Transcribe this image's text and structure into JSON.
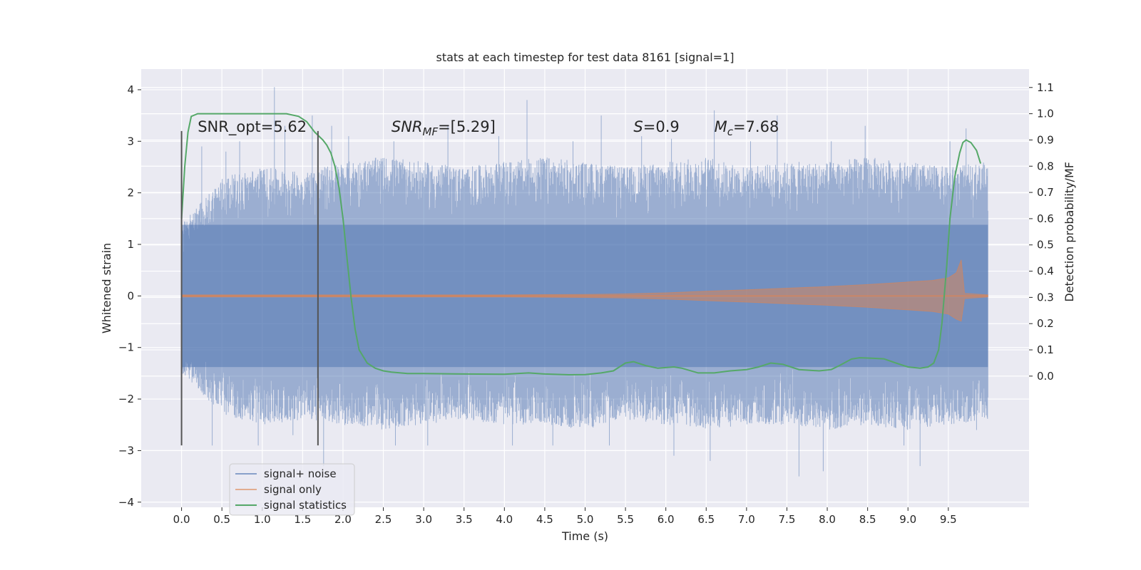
{
  "chart_data": {
    "type": "line",
    "title": "stats at each timestep for test data 8161 [signal=1]",
    "xlabel": "Time (s)",
    "ylabel": "Whitened strain",
    "ylabel_right": "Detection probability/MF",
    "xlim": [
      -0.5,
      10.5
    ],
    "ylim": [
      -4.1,
      4.4
    ],
    "ylim_right": [
      -0.5,
      1.17
    ],
    "x_ticks": [
      0.0,
      0.5,
      1.0,
      1.5,
      2.0,
      2.5,
      3.0,
      3.5,
      4.0,
      4.5,
      5.0,
      5.5,
      6.0,
      6.5,
      7.0,
      7.5,
      8.0,
      8.5,
      9.0,
      9.5
    ],
    "x_tick_labels": [
      "0.0",
      "0.5",
      "1.0",
      "1.5",
      "2.0",
      "2.5",
      "3.0",
      "3.5",
      "4.0",
      "4.5",
      "5.0",
      "5.5",
      "6.0",
      "6.5",
      "7.0",
      "7.5",
      "8.0",
      "8.5",
      "9.0",
      "9.5"
    ],
    "y_ticks": [
      4,
      3,
      2,
      1,
      0,
      -1,
      -2,
      -3,
      -4
    ],
    "y_tick_labels": [
      "4",
      "3",
      "2",
      "1",
      "0",
      "−1",
      "−2",
      "−3",
      "−4"
    ],
    "y_right_ticks": [
      1.1,
      1.0,
      0.9,
      0.8,
      0.7,
      0.6,
      0.5,
      0.4,
      0.3,
      0.2,
      0.1,
      0.0
    ],
    "y_right_tick_labels": [
      "1.1",
      "1.0",
      "0.9",
      "0.8",
      "0.7",
      "0.6",
      "0.5",
      "0.4",
      "0.3",
      "0.2",
      "0.1",
      "0.0"
    ],
    "grid": true,
    "background": "#eaeaf2",
    "legend_position": "lower-left",
    "annotations": [
      {
        "x": 0.2,
        "y": 3.2,
        "text": "SNR_opt=5.62",
        "italic": false
      },
      {
        "x": 2.6,
        "y": 3.2,
        "text": "SNR_MF=[5.29]",
        "italic": true
      },
      {
        "x": 5.6,
        "y": 3.2,
        "text": "S=0.9",
        "italic": true
      },
      {
        "x": 6.6,
        "y": 3.2,
        "text": "M_c=7.68",
        "italic": true
      }
    ],
    "vlines": [
      {
        "x": 0.0,
        "ymin": -2.9,
        "ymax": 3.2
      },
      {
        "x": 1.69,
        "ymin": -2.9,
        "ymax": 3.2
      }
    ],
    "series": [
      {
        "name": "signal+ noise",
        "color": "#4c72b0",
        "alpha": 0.5,
        "x_range": [
          0.0,
          9.99
        ],
        "envelope_upper": [
          1.4,
          2.3,
          2.5,
          2.4,
          2.6,
          2.7,
          2.6,
          2.5,
          2.6,
          2.7,
          2.6,
          2.5,
          2.6,
          2.7,
          2.5,
          2.6,
          2.6,
          2.7,
          2.6,
          2.5,
          2.6
        ],
        "envelope_lower": [
          -1.5,
          -2.3,
          -2.5,
          -2.4,
          -2.5,
          -2.6,
          -2.5,
          -2.4,
          -2.5,
          -2.5,
          -2.6,
          -2.4,
          -2.5,
          -2.6,
          -2.5,
          -2.5,
          -2.6,
          -2.5,
          -2.6,
          -2.5,
          -2.4
        ],
        "peaks": [
          {
            "x": 0.25,
            "y": 2.9
          },
          {
            "x": 0.55,
            "y": 2.8
          },
          {
            "x": 0.72,
            "y": 3.0
          },
          {
            "x": 1.15,
            "y": 4.05
          },
          {
            "x": 1.28,
            "y": 3.3
          },
          {
            "x": 1.62,
            "y": 3.5
          },
          {
            "x": 1.86,
            "y": 3.3
          },
          {
            "x": 2.07,
            "y": 3.1
          },
          {
            "x": 2.63,
            "y": 3.0
          },
          {
            "x": 3.3,
            "y": 3.3
          },
          {
            "x": 3.93,
            "y": 3.1
          },
          {
            "x": 4.28,
            "y": 3.8
          },
          {
            "x": 4.85,
            "y": 3.0
          },
          {
            "x": 5.2,
            "y": 3.5
          },
          {
            "x": 5.7,
            "y": 3.1
          },
          {
            "x": 6.07,
            "y": 3.05
          },
          {
            "x": 6.6,
            "y": 3.6
          },
          {
            "x": 7.05,
            "y": 3.0
          },
          {
            "x": 7.38,
            "y": 3.5
          },
          {
            "x": 8.05,
            "y": 3.0
          },
          {
            "x": 8.47,
            "y": 3.3
          },
          {
            "x": 9.52,
            "y": 3.0
          },
          {
            "x": 9.72,
            "y": 3.25
          },
          {
            "x": 9.95,
            "y": 2.4
          }
        ],
        "troughs": [
          {
            "x": 0.38,
            "y": -2.9
          },
          {
            "x": 0.95,
            "y": -2.9
          },
          {
            "x": 1.38,
            "y": -2.7
          },
          {
            "x": 1.76,
            "y": -3.3
          },
          {
            "x": 2.65,
            "y": -2.9
          },
          {
            "x": 3.05,
            "y": -2.9
          },
          {
            "x": 4.1,
            "y": -2.9
          },
          {
            "x": 4.6,
            "y": -2.9
          },
          {
            "x": 5.3,
            "y": -2.9
          },
          {
            "x": 6.1,
            "y": -3.1
          },
          {
            "x": 6.55,
            "y": -3.2
          },
          {
            "x": 7.65,
            "y": -3.5
          },
          {
            "x": 7.95,
            "y": -3.4
          },
          {
            "x": 8.95,
            "y": -2.9
          },
          {
            "x": 9.15,
            "y": -3.3
          },
          {
            "x": 9.85,
            "y": -2.6
          }
        ]
      },
      {
        "name": "signal only",
        "color": "#dd8452",
        "alpha": 0.5,
        "description_shape": "chirp",
        "x": [
          0.0,
          1.0,
          2.0,
          3.0,
          4.0,
          5.0,
          5.5,
          6.0,
          6.5,
          7.0,
          7.5,
          8.0,
          8.5,
          9.0,
          9.3,
          9.5,
          9.6,
          9.66,
          9.7,
          9.99
        ],
        "amplitude": [
          0.02,
          0.02,
          0.02,
          0.02,
          0.02,
          0.03,
          0.04,
          0.06,
          0.09,
          0.12,
          0.15,
          0.18,
          0.22,
          0.27,
          0.3,
          0.35,
          0.45,
          0.7,
          0.05,
          0.02
        ]
      },
      {
        "name": "signal statistics",
        "color": "#55a868",
        "axis": "right",
        "x": [
          0.0,
          0.04,
          0.08,
          0.12,
          0.2,
          0.3,
          0.5,
          0.8,
          1.1,
          1.3,
          1.45,
          1.55,
          1.65,
          1.75,
          1.8,
          1.85,
          1.9,
          1.95,
          2.0,
          2.05,
          2.1,
          2.15,
          2.2,
          2.3,
          2.4,
          2.5,
          2.6,
          2.8,
          3.0,
          3.5,
          4.0,
          4.3,
          4.5,
          4.8,
          5.0,
          5.2,
          5.35,
          5.5,
          5.6,
          5.75,
          5.9,
          6.1,
          6.2,
          6.4,
          6.6,
          6.8,
          7.0,
          7.15,
          7.3,
          7.45,
          7.65,
          7.9,
          8.05,
          8.15,
          8.3,
          8.4,
          8.55,
          8.7,
          8.85,
          9.0,
          9.15,
          9.25,
          9.32,
          9.38,
          9.42,
          9.48,
          9.52,
          9.58,
          9.64,
          9.68,
          9.72,
          9.78,
          9.85,
          9.9
        ],
        "y": [
          0.6,
          0.8,
          0.93,
          0.99,
          1.0,
          1.0,
          1.0,
          1.0,
          1.0,
          1.0,
          0.99,
          0.97,
          0.93,
          0.9,
          0.88,
          0.85,
          0.8,
          0.72,
          0.6,
          0.45,
          0.3,
          0.18,
          0.1,
          0.05,
          0.03,
          0.02,
          0.015,
          0.01,
          0.01,
          0.008,
          0.007,
          0.012,
          0.008,
          0.005,
          0.006,
          0.012,
          0.02,
          0.05,
          0.055,
          0.04,
          0.03,
          0.035,
          0.03,
          0.012,
          0.012,
          0.02,
          0.025,
          0.035,
          0.05,
          0.045,
          0.025,
          0.02,
          0.025,
          0.04,
          0.065,
          0.07,
          0.068,
          0.066,
          0.05,
          0.035,
          0.03,
          0.035,
          0.05,
          0.1,
          0.2,
          0.42,
          0.6,
          0.76,
          0.85,
          0.89,
          0.9,
          0.89,
          0.86,
          0.81
        ]
      }
    ]
  }
}
